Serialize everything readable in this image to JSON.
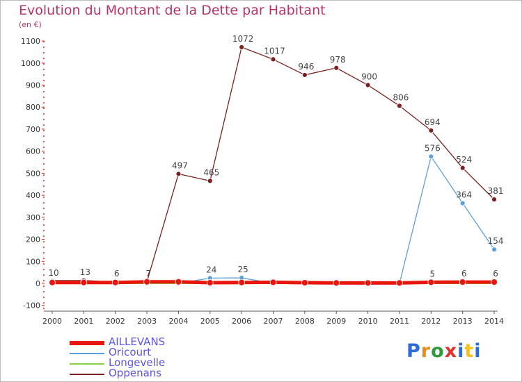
{
  "title": "Evolution du Montant de la Dette par Habitant",
  "subtitle": "(en €)",
  "logo": {
    "text": "Proxiti",
    "colors": [
      "#2b6cd8",
      "#e88b1a",
      "#2f9b3a",
      "#e0332b",
      "#2b6cd8",
      "#f2c21a",
      "#2b6cd8"
    ]
  },
  "chart_data": {
    "type": "line",
    "title": "Evolution du Montant de la Dette par Habitant",
    "ylabel": "(en €)",
    "xlabel": "",
    "categories": [
      "2000",
      "2001",
      "2002",
      "2003",
      "2004",
      "2005",
      "2006",
      "2007",
      "2008",
      "2009",
      "2010",
      "2011",
      "2012",
      "2013",
      "2014"
    ],
    "ylim": [
      -100,
      1100
    ],
    "yticks": [
      "-100",
      "0",
      "100",
      "200",
      "300",
      "400",
      "500",
      "600",
      "700",
      "800",
      "900",
      "1000",
      "1100"
    ],
    "grid": false,
    "legend_position": "bottom-left",
    "series": [
      {
        "name": "AILLEVANS",
        "color": "#e8160c",
        "values": [
          4,
          4,
          4,
          7,
          7,
          3,
          4,
          5,
          3,
          2,
          2,
          2,
          5,
          6,
          6
        ],
        "labels": [
          "",
          "",
          "",
          "",
          "",
          "",
          "",
          "",
          "",
          "",
          "",
          "",
          "5",
          "6",
          "6"
        ]
      },
      {
        "name": "Oricourt",
        "color": "#5b9fd9",
        "values": [
          10,
          0,
          0,
          0,
          0,
          24,
          25,
          0,
          0,
          0,
          0,
          0,
          576,
          364,
          154
        ],
        "labels": [
          "10",
          "",
          "",
          "",
          "",
          "24",
          "25",
          "",
          "",
          "",
          "",
          "",
          "576",
          "364",
          "154"
        ]
      },
      {
        "name": "Longevelle",
        "color": "#8bd04a",
        "values": [
          0,
          0,
          0,
          0,
          0,
          0,
          0,
          0,
          0,
          0,
          0,
          0,
          0,
          0,
          0
        ],
        "labels": [
          "",
          "",
          "",
          "",
          "",
          "",
          "",
          "",
          "",
          "",
          "",
          "",
          "",
          "",
          ""
        ]
      },
      {
        "name": "Oppenans",
        "color": "#7a2020",
        "values": [
          13,
          13,
          6,
          7,
          497,
          465,
          1072,
          1017,
          946,
          978,
          900,
          806,
          694,
          524,
          381
        ],
        "labels": [
          "",
          "13",
          "6",
          "7",
          "497",
          "465",
          "1072",
          "1017",
          "946",
          "978",
          "900",
          "806",
          "694",
          "524",
          "381"
        ]
      }
    ]
  }
}
